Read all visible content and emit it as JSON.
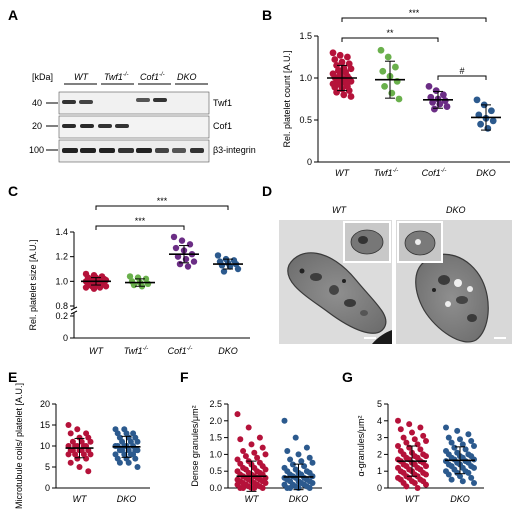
{
  "colors": {
    "wt": "#b5123a",
    "twf1": "#6ab04c",
    "cof1": "#6b2d85",
    "dko": "#2c5a8e"
  },
  "panels": {
    "A": "A",
    "B": "B",
    "C": "C",
    "D": "D",
    "E": "E",
    "F": "F",
    "G": "G"
  },
  "blot": {
    "kda_label": "[kDa]",
    "lanes": [
      "WT",
      "Twf1",
      "Cof1",
      "DKO"
    ],
    "lane_sup": [
      "",
      "-/-",
      "-/-",
      ""
    ],
    "rows": [
      {
        "mw": "40",
        "protein": "Twf1"
      },
      {
        "mw": "20",
        "protein": "Cof1"
      },
      {
        "mw": "100",
        "protein": "β3-integrin"
      }
    ]
  },
  "micrograph": {
    "labels": [
      "WT",
      "DKO"
    ],
    "inset_icons": [
      "zoom-inset-wt",
      "zoom-inset-dko"
    ]
  },
  "chart_data": [
    {
      "panel": "B",
      "type": "scatter",
      "ylabel": "Rel. platelet count [A.U.]",
      "ylim": [
        0,
        1.5
      ],
      "yticks": [
        "0",
        "0.5",
        "1.0",
        "1.5"
      ],
      "categories": [
        "WT",
        "Twf1",
        "Cof1",
        "DKO"
      ],
      "category_sup": [
        "",
        "-/-",
        "-/-",
        ""
      ],
      "means": [
        1.0,
        0.98,
        0.74,
        0.53
      ],
      "sd": [
        0.15,
        0.22,
        0.1,
        0.15
      ],
      "points": [
        [
          1.3,
          1.27,
          1.25,
          1.22,
          1.19,
          1.17,
          1.15,
          1.12,
          1.11,
          1.09,
          1.07,
          1.05,
          1.04,
          1.02,
          1.01,
          1.0,
          0.99,
          0.98,
          0.97,
          0.96,
          0.95,
          0.94,
          0.93,
          0.92,
          0.9,
          0.89,
          0.87,
          0.85,
          0.83,
          0.8,
          0.78
        ],
        [
          1.33,
          1.25,
          1.13,
          1.08,
          1.02,
          0.96,
          0.9,
          0.82,
          0.75
        ],
        [
          0.9,
          0.85,
          0.8,
          0.77,
          0.75,
          0.73,
          0.71,
          0.69,
          0.66,
          0.63
        ],
        [
          0.74,
          0.68,
          0.61,
          0.56,
          0.52,
          0.49,
          0.45,
          0.4
        ]
      ],
      "comparisons": [
        {
          "from": 0,
          "to": 3,
          "label": "***"
        },
        {
          "from": 0,
          "to": 2,
          "label": "**"
        },
        {
          "from": 2,
          "to": 3,
          "label": "#"
        }
      ]
    },
    {
      "panel": "C",
      "type": "scatter",
      "ylabel": "Rel. platelet size [A.U.]",
      "yticks_low": [
        "0",
        "0.2"
      ],
      "yticks_high": [
        "0.8",
        "1.0",
        "1.2",
        "1.4"
      ],
      "categories": [
        "WT",
        "Twf1",
        "Cof1",
        "DKO"
      ],
      "category_sup": [
        "",
        "-/-",
        "-/-",
        ""
      ],
      "means": [
        1.0,
        0.99,
        1.22,
        1.14
      ],
      "sd": [
        0.03,
        0.03,
        0.07,
        0.04
      ],
      "points": [
        [
          1.06,
          1.05,
          1.04,
          1.03,
          1.03,
          1.02,
          1.02,
          1.01,
          1.01,
          1.0,
          1.0,
          1.0,
          0.99,
          0.99,
          0.99,
          0.98,
          0.98,
          0.97,
          0.97,
          0.96,
          0.96,
          0.95,
          0.95,
          0.94
        ],
        [
          1.04,
          1.03,
          1.02,
          1.0,
          0.99,
          0.98,
          0.97,
          0.96
        ],
        [
          1.36,
          1.33,
          1.3,
          1.27,
          1.25,
          1.22,
          1.2,
          1.18,
          1.16,
          1.14,
          1.12
        ],
        [
          1.21,
          1.18,
          1.17,
          1.16,
          1.15,
          1.14,
          1.13,
          1.12,
          1.1,
          1.08
        ]
      ],
      "comparisons": [
        {
          "from": 0,
          "to": 3,
          "label": "***"
        },
        {
          "from": 0,
          "to": 2,
          "label": "***"
        }
      ]
    },
    {
      "panel": "E",
      "type": "scatter",
      "ylabel": "Microtubule coils/ platelet [A.U.]",
      "ylim": [
        0,
        20
      ],
      "yticks": [
        "0",
        "5",
        "10",
        "15",
        "20"
      ],
      "categories": [
        "WT",
        "DKO"
      ],
      "means": [
        9.5,
        9.8
      ],
      "sd": [
        2.3,
        2.5
      ],
      "points": [
        [
          15,
          14,
          13,
          13,
          12,
          12,
          11,
          11,
          11,
          10,
          10,
          10,
          10,
          10,
          9,
          9,
          9,
          9,
          9,
          8,
          8,
          8,
          8,
          7,
          7,
          6,
          5,
          4
        ],
        [
          14,
          14,
          13,
          13,
          13,
          12,
          12,
          12,
          11,
          11,
          11,
          10,
          10,
          10,
          10,
          10,
          9,
          9,
          9,
          9,
          9,
          8,
          8,
          8,
          8,
          7,
          7,
          7,
          6,
          6,
          5
        ]
      ]
    },
    {
      "panel": "F",
      "type": "scatter",
      "ylabel": "Dense granules/μm²",
      "ylim": [
        0,
        2.5
      ],
      "yticks": [
        "0.0",
        "0.5",
        "1.0",
        "1.5",
        "2.0",
        "2.5"
      ],
      "categories": [
        "WT",
        "DKO"
      ],
      "means": [
        0.35,
        0.33
      ],
      "sd": [
        0.45,
        0.38
      ],
      "points": [
        [
          2.2,
          1.8,
          1.5,
          1.45,
          1.3,
          1.2,
          1.1,
          1.05,
          1.0,
          0.95,
          0.9,
          0.85,
          0.8,
          0.75,
          0.72,
          0.7,
          0.65,
          0.6,
          0.6,
          0.55,
          0.55,
          0.5,
          0.5,
          0.45,
          0.45,
          0.4,
          0.4,
          0.4,
          0.35,
          0.35,
          0.3,
          0.3,
          0.3,
          0.25,
          0.25,
          0.25,
          0.2,
          0.2,
          0.2,
          0.15,
          0.15,
          0.15,
          0.1,
          0.1,
          0.1,
          0.05,
          0.05,
          0.0,
          0.0,
          0.0,
          0.0,
          0.0
        ],
        [
          2.0,
          1.5,
          1.2,
          1.1,
          1.0,
          0.9,
          0.85,
          0.8,
          0.75,
          0.7,
          0.65,
          0.6,
          0.55,
          0.5,
          0.5,
          0.45,
          0.45,
          0.4,
          0.4,
          0.35,
          0.35,
          0.3,
          0.3,
          0.3,
          0.25,
          0.25,
          0.2,
          0.2,
          0.2,
          0.15,
          0.15,
          0.1,
          0.1,
          0.1,
          0.05,
          0.05,
          0.0,
          0.0,
          0.0,
          0.0
        ]
      ]
    },
    {
      "panel": "G",
      "type": "scatter",
      "ylabel": "α-granules/μm²",
      "ylim": [
        0,
        5
      ],
      "yticks": [
        "0",
        "1",
        "2",
        "3",
        "4",
        "5"
      ],
      "categories": [
        "WT",
        "DKO"
      ],
      "means": [
        1.6,
        1.65
      ],
      "sd": [
        0.9,
        0.8
      ],
      "points": [
        [
          4.0,
          3.8,
          3.6,
          3.5,
          3.3,
          3.1,
          3.0,
          2.9,
          2.8,
          2.7,
          2.6,
          2.5,
          2.4,
          2.3,
          2.2,
          2.1,
          2.0,
          2.0,
          1.9,
          1.9,
          1.8,
          1.8,
          1.7,
          1.7,
          1.6,
          1.6,
          1.5,
          1.5,
          1.4,
          1.4,
          1.3,
          1.3,
          1.2,
          1.2,
          1.1,
          1.1,
          1.0,
          1.0,
          0.9,
          0.9,
          0.8,
          0.8,
          0.7,
          0.7,
          0.6,
          0.6,
          0.5,
          0.5,
          0.4,
          0.4,
          0.3,
          0.3,
          0.2,
          0.1,
          0.0
        ],
        [
          3.6,
          3.4,
          3.2,
          3.0,
          2.9,
          2.8,
          2.7,
          2.6,
          2.5,
          2.4,
          2.3,
          2.2,
          2.1,
          2.0,
          2.0,
          1.9,
          1.9,
          1.8,
          1.8,
          1.7,
          1.7,
          1.6,
          1.6,
          1.5,
          1.5,
          1.4,
          1.4,
          1.3,
          1.3,
          1.2,
          1.2,
          1.1,
          1.0,
          1.0,
          0.9,
          0.9,
          0.8,
          0.7,
          0.6,
          0.5,
          0.4,
          0.3
        ]
      ]
    }
  ]
}
